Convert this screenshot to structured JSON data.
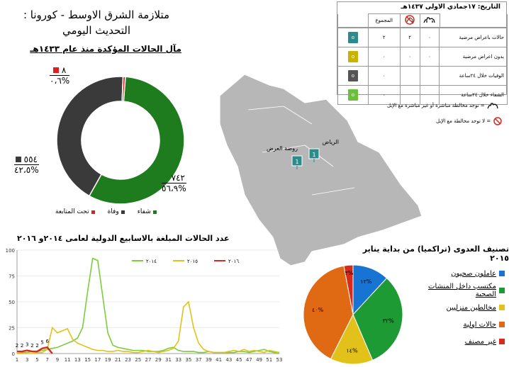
{
  "header": {
    "title_line1": "متلازمة الشرق الاوسط - كورونا :",
    "title_line2": "التحديث اليومي",
    "donut_heading": "مآل الحالات المؤكدة منذ عام ١٤٣٣هـ"
  },
  "donut": {
    "segments": [
      {
        "name": "شفاء",
        "count": "٧٤٢",
        "pct": "٥٦،٩%",
        "value": 56.9,
        "color": "#1e7b1e"
      },
      {
        "name": "وفاة",
        "count": "٥٥٤",
        "pct": "٤٢،٥%",
        "value": 42.5,
        "color": "#3a3a3a"
      },
      {
        "name": "تحت المتابعة",
        "count": "٨",
        "pct": "٠،٦%",
        "value": 0.6,
        "color": "#e02020"
      }
    ]
  },
  "table": {
    "date": "التاريخ:  ١٧جمادي الاولى ١٤٣٧هـ",
    "total_header": "المجموع",
    "rows": [
      {
        "label": "حالات باعراض مرضية",
        "camel": "٠",
        "nocamel": "٢",
        "total": "٢",
        "color": "#2e8b8b"
      },
      {
        "label": "بدون اعراض مرضية",
        "camel": "٠",
        "nocamel": "٠",
        "total": "٠",
        "color": "#c8b400"
      },
      {
        "label": "الوفيات خلال  ٢٤ساعة",
        "camel": "",
        "nocamel": "",
        "total": "٠",
        "color": "#555555"
      },
      {
        "label": "الشفاء خلال  ٢٤ساعة",
        "camel": "",
        "nocamel": "",
        "total": "٠",
        "color": "#6abf3c"
      }
    ],
    "legend_camel": "= توجد مخالطة مباشرة أو غير مباشرة مع الإبل",
    "legend_nocamel": "= لا توجد مخالطة مع الإبل",
    "camel_icon": "camel-icon",
    "nocamel_icon": "no-camel-icon"
  },
  "map": {
    "region_color": "#b7b7b7",
    "cities": [
      {
        "name": "الرياض",
        "count": "1"
      },
      {
        "name": "روضة العرض",
        "count": "1"
      }
    ]
  },
  "chart_data": [
    {
      "type": "line",
      "title": "عدد الحالات المبلغة بالاسابيع الدولية لعامى  ٢٠١٤و ٢٠١٦",
      "x": [
        1,
        2,
        3,
        4,
        5,
        6,
        7,
        8,
        9,
        10,
        11,
        12,
        13,
        14,
        15,
        16,
        17,
        18,
        19,
        20,
        21,
        22,
        23,
        24,
        25,
        26,
        27,
        28,
        29,
        30,
        31,
        32,
        33,
        34,
        35,
        36,
        37,
        38,
        39,
        40,
        41,
        42,
        43,
        44,
        45,
        46,
        47,
        48,
        49,
        50,
        51,
        52,
        53
      ],
      "xticks": [
        1,
        3,
        5,
        7,
        9,
        11,
        13,
        15,
        17,
        19,
        21,
        23,
        25,
        27,
        29,
        31,
        33,
        35,
        37,
        39,
        41,
        43,
        45,
        47,
        49,
        51,
        53
      ],
      "ylim": [
        0,
        100
      ],
      "yticks": [
        0,
        25,
        50,
        75,
        100
      ],
      "grid": true,
      "legend_position": "top",
      "series": [
        {
          "name": "٢٠١٤",
          "color": "#7dcc3a",
          "values": [
            0,
            1,
            1,
            2,
            2,
            3,
            4,
            5,
            6,
            8,
            10,
            12,
            15,
            25,
            60,
            92,
            90,
            55,
            20,
            8,
            6,
            5,
            4,
            3,
            3,
            3,
            2,
            2,
            2,
            3,
            5,
            6,
            3,
            2,
            2,
            2,
            1,
            1,
            2,
            1,
            1,
            1,
            1,
            1,
            2,
            2,
            1,
            2,
            3,
            4,
            2,
            1,
            0
          ]
        },
        {
          "name": "٢٠١٥",
          "color": "#e2c21a",
          "values": [
            0,
            0,
            0,
            0,
            1,
            1,
            4,
            25,
            20,
            22,
            24,
            14,
            10,
            8,
            6,
            4,
            3,
            3,
            2,
            2,
            3,
            2,
            2,
            1,
            1,
            2,
            3,
            2,
            1,
            2,
            3,
            5,
            12,
            45,
            50,
            25,
            10,
            4,
            2,
            1,
            1,
            1,
            2,
            3,
            2,
            4,
            2,
            3,
            2,
            1,
            3,
            2,
            1
          ]
        },
        {
          "name": "٢٠١٦",
          "color": "#d62a1a",
          "values": [
            2,
            2,
            3,
            2,
            2,
            5,
            6,
            0,
            0,
            0,
            0,
            0,
            0,
            0,
            0,
            0,
            0,
            0,
            0,
            0,
            0,
            0,
            0,
            0,
            0,
            0,
            0,
            0,
            0,
            0,
            0,
            0,
            0,
            0,
            0,
            0,
            0,
            0,
            0,
            0,
            0,
            0,
            0,
            0,
            0,
            0,
            0,
            0,
            0,
            0,
            0,
            0,
            0
          ]
        }
      ],
      "data_labels_2016": [
        "2",
        "2",
        "3",
        "2",
        "2",
        "5",
        "6"
      ]
    },
    {
      "type": "pie",
      "title": "تصنيف العدوى (تراكميا) من بداية يناير ٢٠١٥",
      "slices": [
        {
          "name": "عاملون صحيون",
          "value": 12,
          "label": "١٢%",
          "color": "#1874d2"
        },
        {
          "name": "مكتسب داخل المنشات الصحية",
          "value": 32,
          "label": "٣٢%",
          "color": "#1e9a35"
        },
        {
          "name": "مخالطين منزليين",
          "value": 14,
          "label": "١٤%",
          "color": "#e2c21a"
        },
        {
          "name": "حالات اولية",
          "value": 40,
          "label": "٤٠%",
          "color": "#e06a14"
        },
        {
          "name": "غير مصنف",
          "value": 3,
          "label": "٣%",
          "color": "#d62a1a"
        }
      ]
    }
  ]
}
